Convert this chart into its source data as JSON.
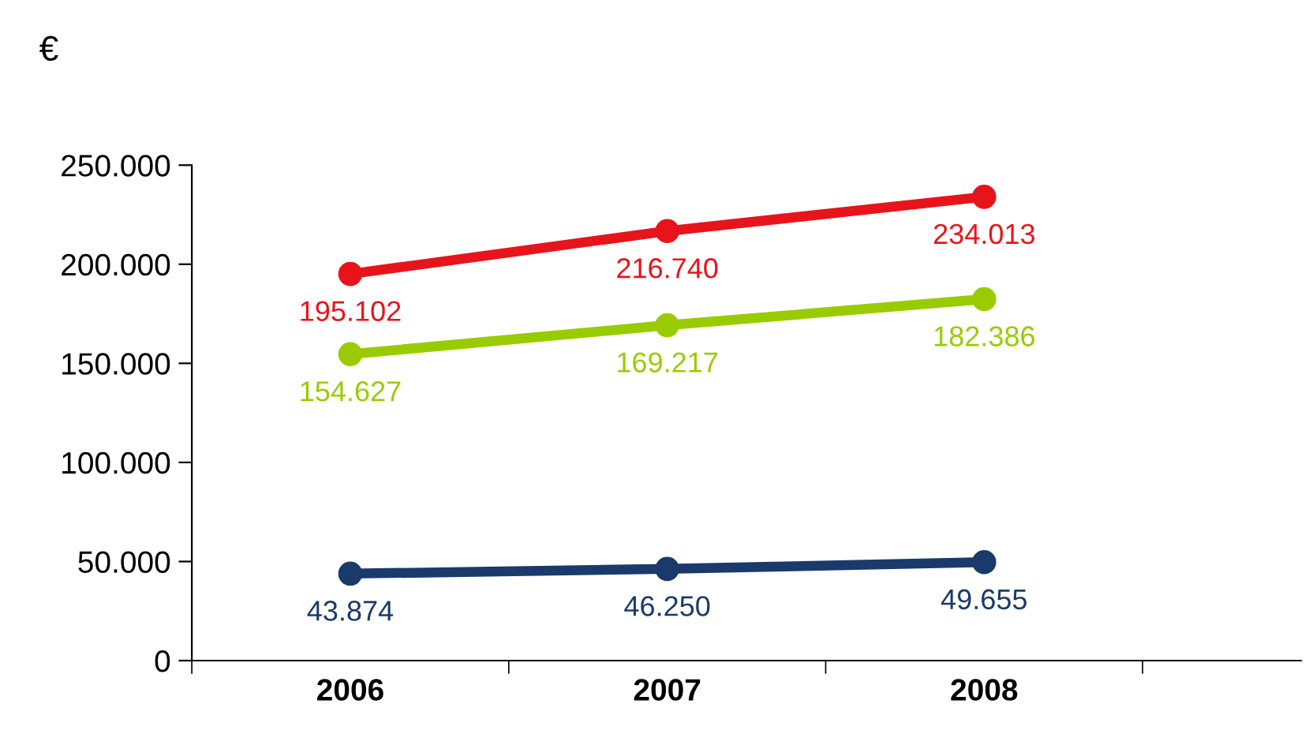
{
  "chart_data": {
    "type": "line",
    "ylabel": "€",
    "categories": [
      "2006",
      "2007",
      "2008"
    ],
    "series": [
      {
        "color": "#e8141b",
        "values": [
          195102,
          216740,
          234013
        ],
        "value_labels": [
          "195.102",
          "216.740",
          "234.013"
        ]
      },
      {
        "color": "#99cc00",
        "values": [
          154627,
          169217,
          182386
        ],
        "value_labels": [
          "154.627",
          "169.217",
          "182.386"
        ]
      },
      {
        "color": "#1a3a6b",
        "values": [
          43874,
          46250,
          49655
        ],
        "value_labels": [
          "43.874",
          "46.250",
          "49.655"
        ]
      }
    ],
    "ylim": [
      0,
      250000
    ],
    "yticks": [
      {
        "value": 0,
        "label": "0"
      },
      {
        "value": 50000,
        "label": "50.000"
      },
      {
        "value": 100000,
        "label": "100.000"
      },
      {
        "value": 150000,
        "label": "150.000"
      },
      {
        "value": 200000,
        "label": "200.000"
      },
      {
        "value": 250000,
        "label": "250.000"
      }
    ],
    "marker": "circle",
    "line_style": "solid"
  }
}
